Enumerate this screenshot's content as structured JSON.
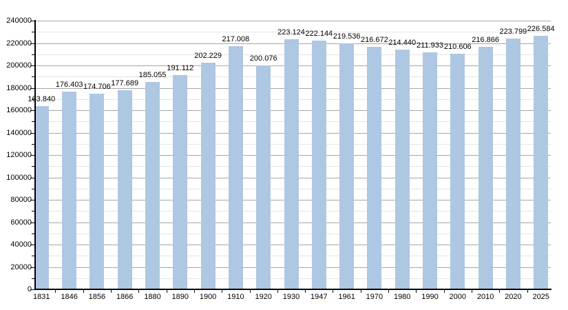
{
  "chart_data": {
    "type": "bar",
    "title": "",
    "xlabel": "",
    "ylabel": "",
    "legend": "none",
    "grid": true,
    "categories": [
      "1831",
      "1846",
      "1856",
      "1866",
      "1880",
      "1890",
      "1900",
      "1910",
      "1920",
      "1930",
      "1947",
      "1961",
      "1970",
      "1980",
      "1990",
      "2000",
      "2010",
      "2020",
      "2025"
    ],
    "values": [
      163840,
      176403,
      174706,
      177689,
      185055,
      191112,
      202229,
      217008,
      200076,
      223124,
      222144,
      219536,
      216672,
      214440,
      211933,
      210606,
      216866,
      223799,
      226584
    ],
    "value_labels": [
      "163.840",
      "176.403",
      "174.706",
      "177.689",
      "185.055",
      "191.112",
      "202.229",
      "217.008",
      "200.076",
      "223.124",
      "222.144",
      "219.536",
      "216.672",
      "214.440",
      "211.933",
      "210.606",
      "216.866",
      "223.799",
      "226.584"
    ],
    "ylim": [
      0,
      240000
    ],
    "y_major_step": 20000,
    "y_minor_step": 10000,
    "y_tick_labels": [
      "0",
      "20000",
      "40000",
      "60000",
      "80000",
      "100000",
      "120000",
      "140000",
      "160000",
      "180000",
      "200000",
      "220000",
      "240000"
    ],
    "colors": {
      "bar": "#aec7e2",
      "major_grid": "#a6a6a6",
      "minor_grid": "#e4e4e4",
      "axis": "#000000",
      "text": "#000000",
      "background": "#ffffff"
    }
  }
}
